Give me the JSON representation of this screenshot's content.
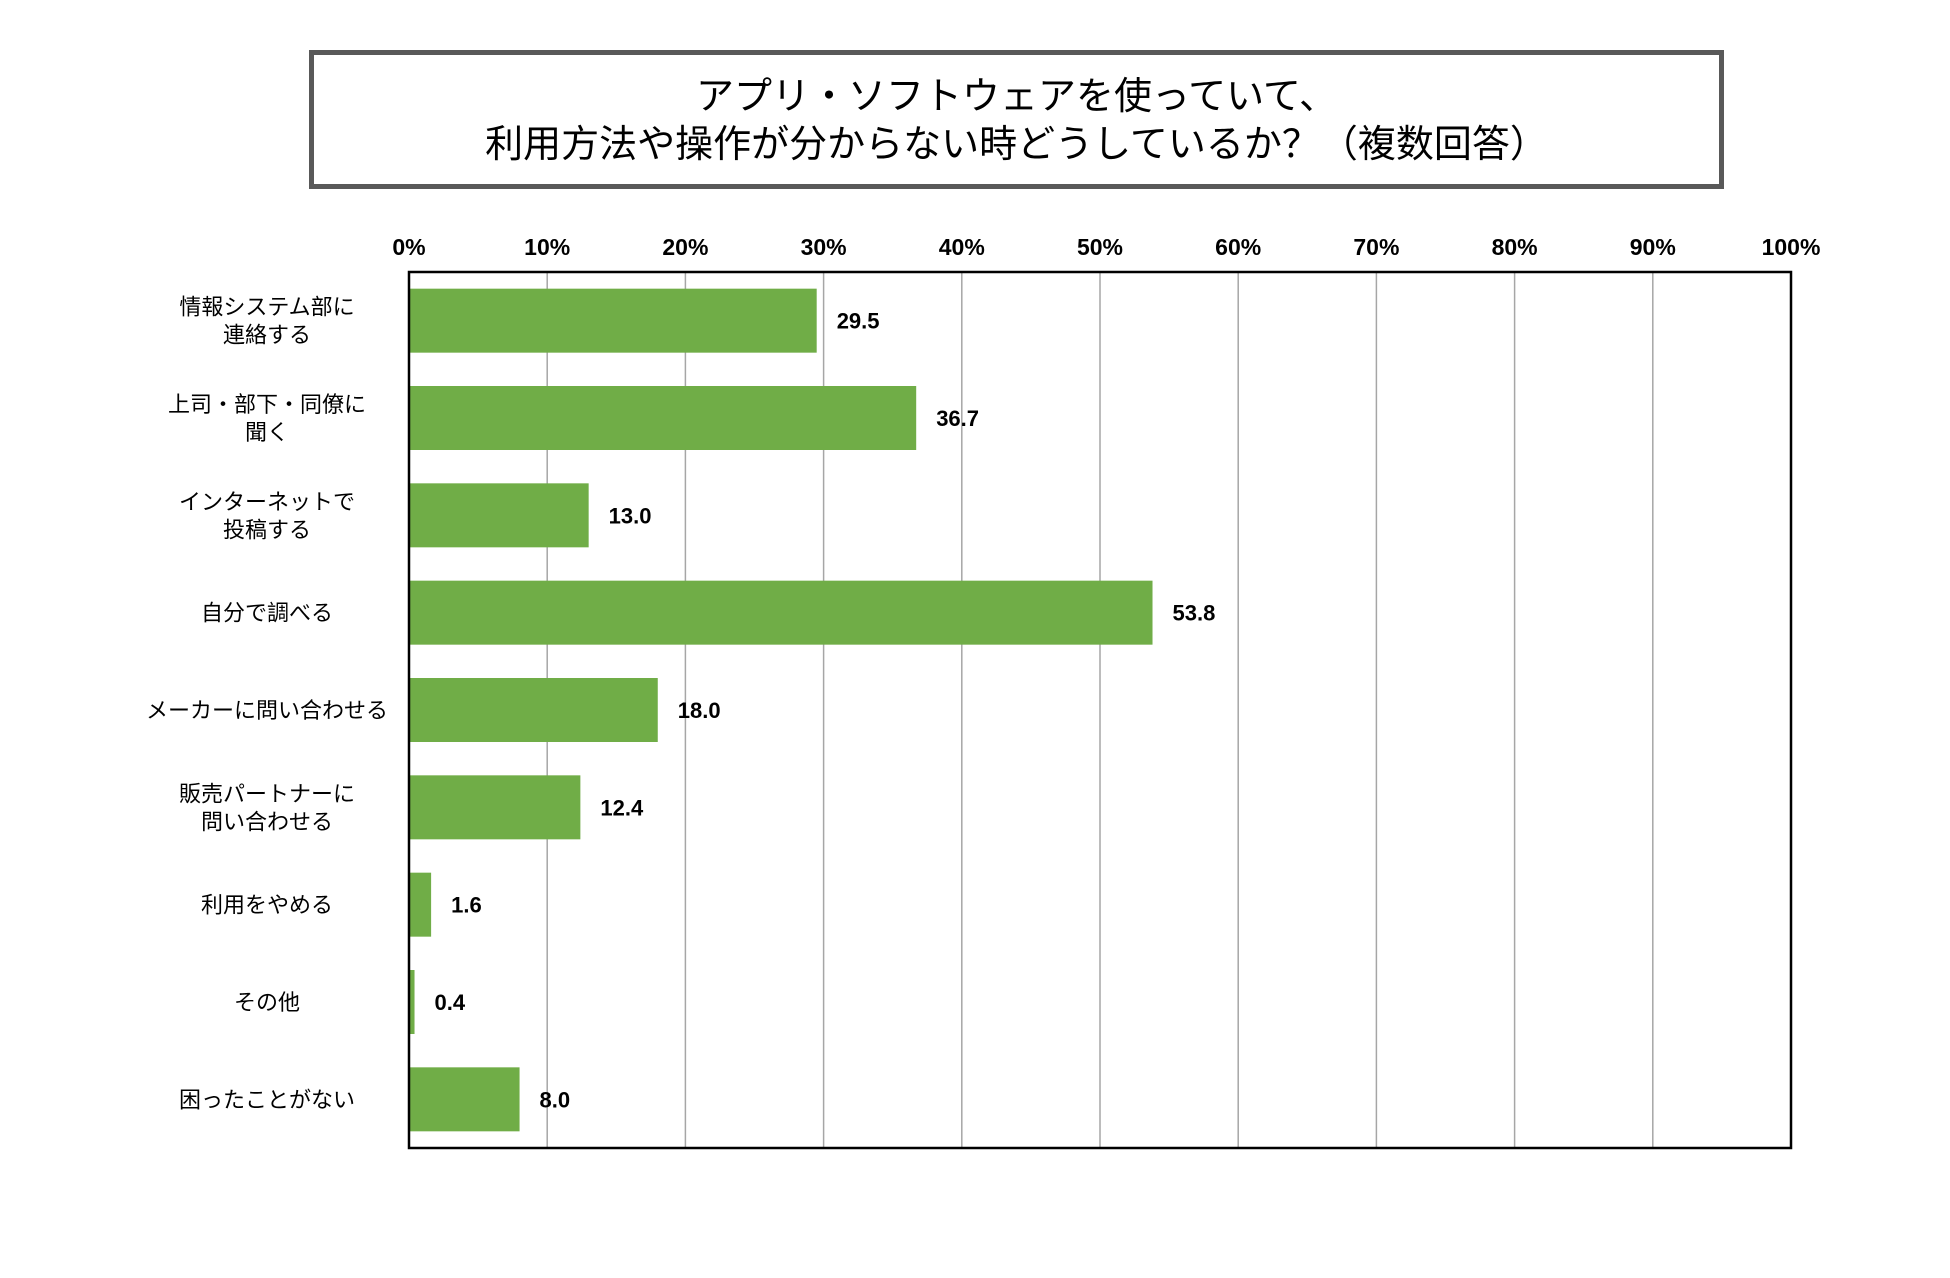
{
  "title": {
    "line1": "アプリ・ソフトウェアを使っていて、",
    "line2": "利用方法や操作が分からない時どうしているか？（複数回答）"
  },
  "colors": {
    "bar": "#70ad47",
    "grid": "#a6a6a6",
    "frame": "#000000",
    "title_border": "#595959"
  },
  "chart_data": {
    "type": "bar",
    "orientation": "horizontal",
    "title": "アプリ・ソフトウェアを使っていて、利用方法や操作が分からない時どうしているか？（複数回答）",
    "categories": [
      [
        "情報システム部に",
        "連絡する"
      ],
      [
        "上司・部下・同僚に",
        "聞く"
      ],
      [
        "インターネットで",
        "投稿する"
      ],
      [
        "自分で調べる"
      ],
      [
        "メーカーに問い合わせる"
      ],
      [
        "販売パートナーに",
        "問い合わせる"
      ],
      [
        "利用をやめる"
      ],
      [
        "その他"
      ],
      [
        "困ったことがない"
      ]
    ],
    "values": [
      29.5,
      36.7,
      13.0,
      53.8,
      18.0,
      12.4,
      1.6,
      0.4,
      8.0
    ],
    "value_labels": [
      "29.5",
      "36.7",
      "13.0",
      "53.8",
      "18.0",
      "12.4",
      "1.6",
      "0.4",
      "8.0"
    ],
    "xlim": [
      0,
      100
    ],
    "xticks": [
      "0%",
      "10%",
      "20%",
      "30%",
      "40%",
      "50%",
      "60%",
      "70%",
      "80%",
      "90%",
      "100%"
    ],
    "xaxis_position": "top",
    "grid": true,
    "legend": "none"
  }
}
